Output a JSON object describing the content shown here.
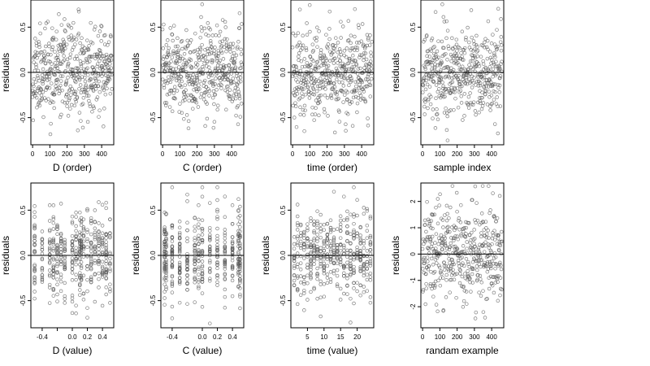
{
  "chart_data": [
    {
      "type": "scatter",
      "xlabel": "D (order)",
      "ylabel": "residuals",
      "xlim": [
        -10,
        470
      ],
      "ylim": [
        -0.8,
        0.8
      ],
      "xticks": [
        0,
        100,
        200,
        300,
        400
      ],
      "yticks": [
        -0.5,
        0.0,
        0.5
      ],
      "yticklabels": [
        "-0.5",
        "0.0",
        "0.5"
      ],
      "reference_line_y": 0,
      "x_kind": "index",
      "n": 460,
      "spread": 0.24,
      "seed": 11
    },
    {
      "type": "scatter",
      "xlabel": "C (order)",
      "ylabel": "residuals",
      "xlim": [
        -10,
        470
      ],
      "ylim": [
        -0.8,
        0.8
      ],
      "xticks": [
        0,
        100,
        200,
        300,
        400
      ],
      "yticks": [
        -0.5,
        0.0,
        0.5
      ],
      "yticklabels": [
        "-0.5",
        "0.0",
        "0.5"
      ],
      "reference_line_y": 0,
      "x_kind": "index",
      "n": 460,
      "spread": 0.24,
      "seed": 23
    },
    {
      "type": "scatter",
      "xlabel": "time (order)",
      "ylabel": "residuals",
      "xlim": [
        -10,
        470
      ],
      "ylim": [
        -0.8,
        0.8
      ],
      "xticks": [
        0,
        100,
        200,
        300,
        400
      ],
      "yticks": [
        -0.5,
        0.0,
        0.5
      ],
      "yticklabels": [
        "-0.5",
        "0.0",
        "0.5"
      ],
      "reference_line_y": 0,
      "x_kind": "index",
      "n": 460,
      "spread": 0.24,
      "seed": 37
    },
    {
      "type": "scatter",
      "xlabel": "sample index",
      "ylabel": "residuals",
      "xlim": [
        -10,
        470
      ],
      "ylim": [
        -0.8,
        0.8
      ],
      "xticks": [
        0,
        100,
        200,
        300,
        400
      ],
      "yticks": [
        -0.5,
        0.0,
        0.5
      ],
      "yticklabels": [
        "-0.5",
        "0.0",
        "0.5"
      ],
      "reference_line_y": 0,
      "x_kind": "index",
      "n": 460,
      "spread": 0.24,
      "seed": 41
    },
    {
      "type": "scatter",
      "xlabel": "D (value)",
      "ylabel": "residuals",
      "xlim": [
        -0.55,
        0.55
      ],
      "ylim": [
        -0.8,
        0.8
      ],
      "xticks": [
        -0.4,
        -0.2,
        0.0,
        0.2,
        0.4
      ],
      "xticklabels": [
        "-0.4",
        "",
        "0.0",
        "0.2",
        "0.4"
      ],
      "yticks": [
        -0.5,
        0.0,
        0.5
      ],
      "yticklabels": [
        "-0.5",
        "0.0",
        "0.5"
      ],
      "reference_line_y": 0,
      "x_kind": "levels",
      "levels": [
        -0.5,
        -0.4,
        -0.3,
        -0.25,
        -0.2,
        -0.15,
        -0.1,
        0.0,
        0.05,
        0.1,
        0.12,
        0.15,
        0.2,
        0.25,
        0.3,
        0.35,
        0.4,
        0.45,
        0.5
      ],
      "n": 460,
      "spread": 0.24,
      "seed": 53
    },
    {
      "type": "scatter",
      "xlabel": "C (value)",
      "ylabel": "residuals",
      "xlim": [
        -0.55,
        0.55
      ],
      "ylim": [
        -0.8,
        0.8
      ],
      "xticks": [
        -0.4,
        0.0,
        0.2,
        0.4
      ],
      "xticklabels": [
        "-0.4",
        "0.0",
        "0.2",
        "0.4"
      ],
      "yticks": [
        -0.5,
        0.0,
        0.5
      ],
      "yticklabels": [
        "-0.5",
        "0.0",
        "0.5"
      ],
      "reference_line_y": 0,
      "x_kind": "levels",
      "levels": [
        -0.5,
        -0.48,
        -0.4,
        -0.3,
        -0.2,
        -0.1,
        -0.05,
        0.0,
        0.1,
        0.2,
        0.3,
        0.4,
        0.48,
        0.5
      ],
      "n": 460,
      "spread": 0.24,
      "seed": 67
    },
    {
      "type": "scatter",
      "xlabel": "time (value)",
      "ylabel": "residuals",
      "xlim": [
        0,
        25
      ],
      "ylim": [
        -0.8,
        0.8
      ],
      "xticks": [
        5,
        10,
        15,
        20
      ],
      "xticklabels": [
        "5",
        "10",
        "15",
        "20"
      ],
      "yticks": [
        -0.5,
        0.0,
        0.5
      ],
      "yticklabels": [
        "-0.5",
        "0.0",
        "0.5"
      ],
      "reference_line_y": 0,
      "x_kind": "levels",
      "levels": [
        1,
        2,
        3,
        4,
        5,
        6,
        7,
        8,
        9,
        10,
        11,
        12,
        13,
        14,
        15,
        16,
        17,
        18,
        19,
        20,
        21,
        22,
        23,
        24
      ],
      "n": 460,
      "spread": 0.24,
      "seed": 79
    },
    {
      "type": "scatter",
      "xlabel": "randam example",
      "ylabel": "residuals",
      "xlim": [
        -10,
        470
      ],
      "ylim": [
        -2.8,
        2.7
      ],
      "xticks": [
        0,
        100,
        200,
        300,
        400
      ],
      "yticks": [
        -2,
        -1,
        0,
        1,
        2
      ],
      "yticklabels": [
        "-2",
        "-1",
        "0",
        "1",
        "2"
      ],
      "reference_line_y": 0,
      "x_kind": "index",
      "n": 460,
      "spread": 0.95,
      "seed": 97
    }
  ]
}
